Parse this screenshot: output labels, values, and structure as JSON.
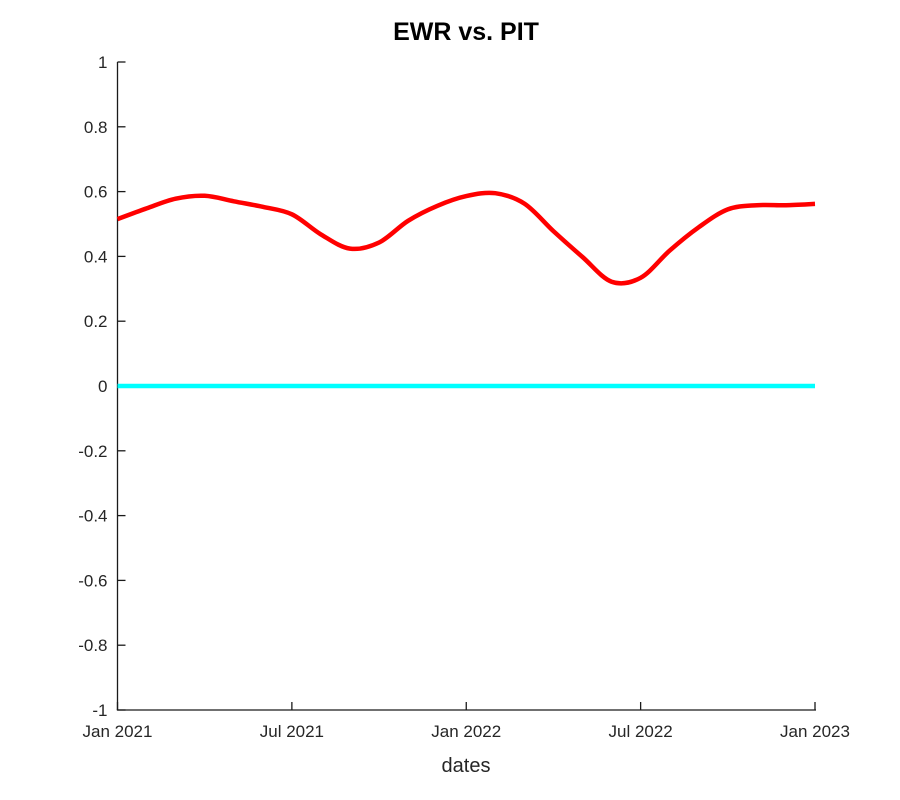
{
  "chart_data": {
    "type": "line",
    "title": "EWR vs. PIT",
    "xlabel": "dates",
    "ylabel": "",
    "ylim": [
      -1,
      1
    ],
    "x_axis": {
      "unit": "months_since_jan_2021",
      "range_months": [
        0,
        24
      ],
      "tick_months": [
        0,
        6,
        12,
        18,
        24
      ],
      "tick_labels": [
        "Jan 2021",
        "Jul 2021",
        "Jan 2022",
        "Jul 2022",
        "Jan 2023"
      ]
    },
    "y_axis": {
      "ticks": [
        -1,
        -0.8,
        -0.6,
        -0.4,
        -0.2,
        0,
        0.2,
        0.4,
        0.6,
        0.8,
        1
      ],
      "tick_labels": [
        "-1",
        "-0.8",
        "-0.6",
        "-0.4",
        "-0.2",
        "0",
        "0.2",
        "0.4",
        "0.6",
        "0.8",
        "1"
      ]
    },
    "grid": false,
    "legend_visible": false,
    "series": [
      {
        "name": "red-curve",
        "color": "#ff0000",
        "line_width": 4.5,
        "x_months": [
          0,
          1,
          2,
          3,
          4,
          5,
          6,
          7,
          8,
          9,
          10,
          11,
          12,
          13,
          14,
          15,
          16,
          17,
          18,
          19,
          20,
          21,
          22,
          23,
          24
        ],
        "values": [
          0.515,
          0.548,
          0.578,
          0.587,
          0.57,
          0.553,
          0.53,
          0.468,
          0.424,
          0.443,
          0.51,
          0.556,
          0.586,
          0.595,
          0.563,
          0.478,
          0.398,
          0.322,
          0.334,
          0.418,
          0.49,
          0.545,
          0.558,
          0.558,
          0.562
        ]
      },
      {
        "name": "cyan-zero-baseline",
        "color": "#00ffff",
        "line_width": 4.5,
        "x_months": [
          0,
          24
        ],
        "values": [
          0,
          0
        ]
      }
    ],
    "colors": {
      "axis": "#1a1a1a",
      "tick_text": "#262626",
      "title_text": "#000000",
      "background": "#ffffff"
    }
  }
}
